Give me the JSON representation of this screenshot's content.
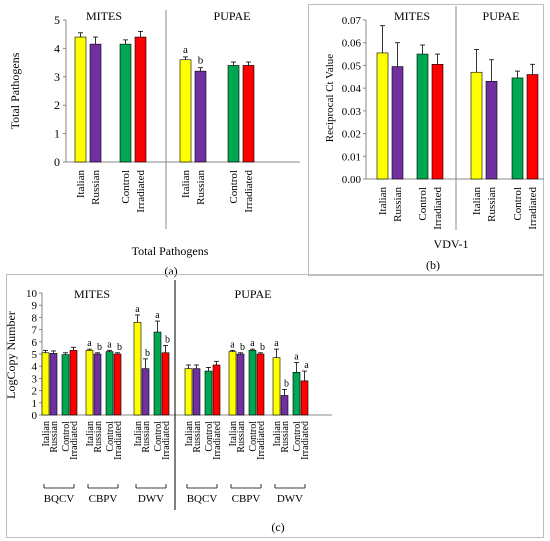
{
  "colors": {
    "Italian": "#ffff00",
    "Russian": "#7030a0",
    "Control": "#00a651",
    "Irradiated": "#ff0000"
  },
  "panels": {
    "a": {
      "label": "(a)",
      "letter": "a"
    },
    "b": {
      "label": "(b)",
      "letter": "b"
    },
    "c": {
      "label": "(c)"
    }
  },
  "chart_data": [
    {
      "id": "a",
      "type": "bar",
      "ylabel": "Total Pathogens",
      "xlabel": "Total Pathogens",
      "ylim": [
        0,
        5
      ],
      "yticks": [
        0,
        1,
        2,
        3,
        4,
        5
      ],
      "sections": [
        "MITES",
        "PUPAE"
      ],
      "categories": [
        "Italian",
        "Russian",
        "Control",
        "Irradiated",
        "Italian",
        "Russian",
        "Control",
        "Irradiated"
      ],
      "values": [
        4.4,
        4.15,
        4.15,
        4.4,
        3.6,
        3.2,
        3.4,
        3.4
      ],
      "errors": [
        0.15,
        0.25,
        0.15,
        0.2,
        0.1,
        0.12,
        0.12,
        0.12
      ],
      "letters": [
        "",
        "",
        "",
        "",
        "a",
        "b",
        "",
        ""
      ]
    },
    {
      "id": "b",
      "type": "bar",
      "ylabel": "Reciprocal Ct Value",
      "xlabel": "VDV-1",
      "ylim": [
        0,
        0.07
      ],
      "yticks": [
        "0.00",
        "0.01",
        "0.02",
        "0.03",
        "0.04",
        "0.05",
        "0.06",
        "0.07"
      ],
      "sections": [
        "MITES",
        "PUPAE"
      ],
      "categories": [
        "Italian",
        "Russian",
        "Control",
        "Irradiated",
        "Italian",
        "Russian",
        "Control",
        "Irradiated"
      ],
      "values": [
        0.0555,
        0.0495,
        0.055,
        0.0505,
        0.047,
        0.043,
        0.0445,
        0.046
      ],
      "errors": [
        0.012,
        0.0105,
        0.004,
        0.0045,
        0.01,
        0.0095,
        0.003,
        0.0045
      ],
      "letters": [
        "",
        "",
        "",
        "",
        "",
        "",
        "",
        ""
      ]
    },
    {
      "id": "c",
      "type": "bar",
      "ylabel": "LogCopy Number",
      "ylim": [
        0,
        10
      ],
      "yticks": [
        0,
        1,
        2,
        3,
        4,
        5,
        6,
        7,
        8,
        9,
        10
      ],
      "sections": [
        "MITES",
        "PUPAE"
      ],
      "groups": [
        "BQCV",
        "CBPV",
        "DWV"
      ],
      "bar_labels": [
        "Italian",
        "Russian",
        "Control",
        "Irradiated"
      ],
      "series": [
        {
          "section": "MITES",
          "group": "BQCV",
          "values": [
            5.1,
            5.05,
            4.95,
            5.3
          ],
          "errors": [
            0.2,
            0.2,
            0.15,
            0.25
          ],
          "letters": [
            "",
            "",
            "",
            ""
          ]
        },
        {
          "section": "MITES",
          "group": "CBPV",
          "values": [
            5.3,
            5.0,
            5.2,
            5.0
          ],
          "errors": [
            0.1,
            0.1,
            0.1,
            0.1
          ],
          "letters": [
            "a",
            "b",
            "a",
            "b"
          ]
        },
        {
          "section": "MITES",
          "group": "DWV",
          "values": [
            7.6,
            3.8,
            6.8,
            5.1
          ],
          "errors": [
            0.6,
            0.8,
            0.9,
            0.6
          ],
          "letters": [
            "a",
            "b",
            "a",
            "b"
          ]
        },
        {
          "section": "PUPAE",
          "group": "BQCV",
          "values": [
            3.8,
            3.8,
            3.6,
            4.1
          ],
          "errors": [
            0.3,
            0.3,
            0.3,
            0.3
          ],
          "letters": [
            "",
            "",
            "",
            ""
          ]
        },
        {
          "section": "PUPAE",
          "group": "CBPV",
          "values": [
            5.2,
            5.0,
            5.3,
            5.0
          ],
          "errors": [
            0.1,
            0.1,
            0.1,
            0.1
          ],
          "letters": [
            "a",
            "b",
            "a",
            "b"
          ]
        },
        {
          "section": "PUPAE",
          "group": "DWV",
          "values": [
            4.7,
            1.6,
            3.5,
            2.8
          ],
          "errors": [
            0.7,
            0.5,
            0.8,
            0.8
          ],
          "letters": [
            "a",
            "b",
            "a",
            "a"
          ]
        }
      ]
    }
  ]
}
